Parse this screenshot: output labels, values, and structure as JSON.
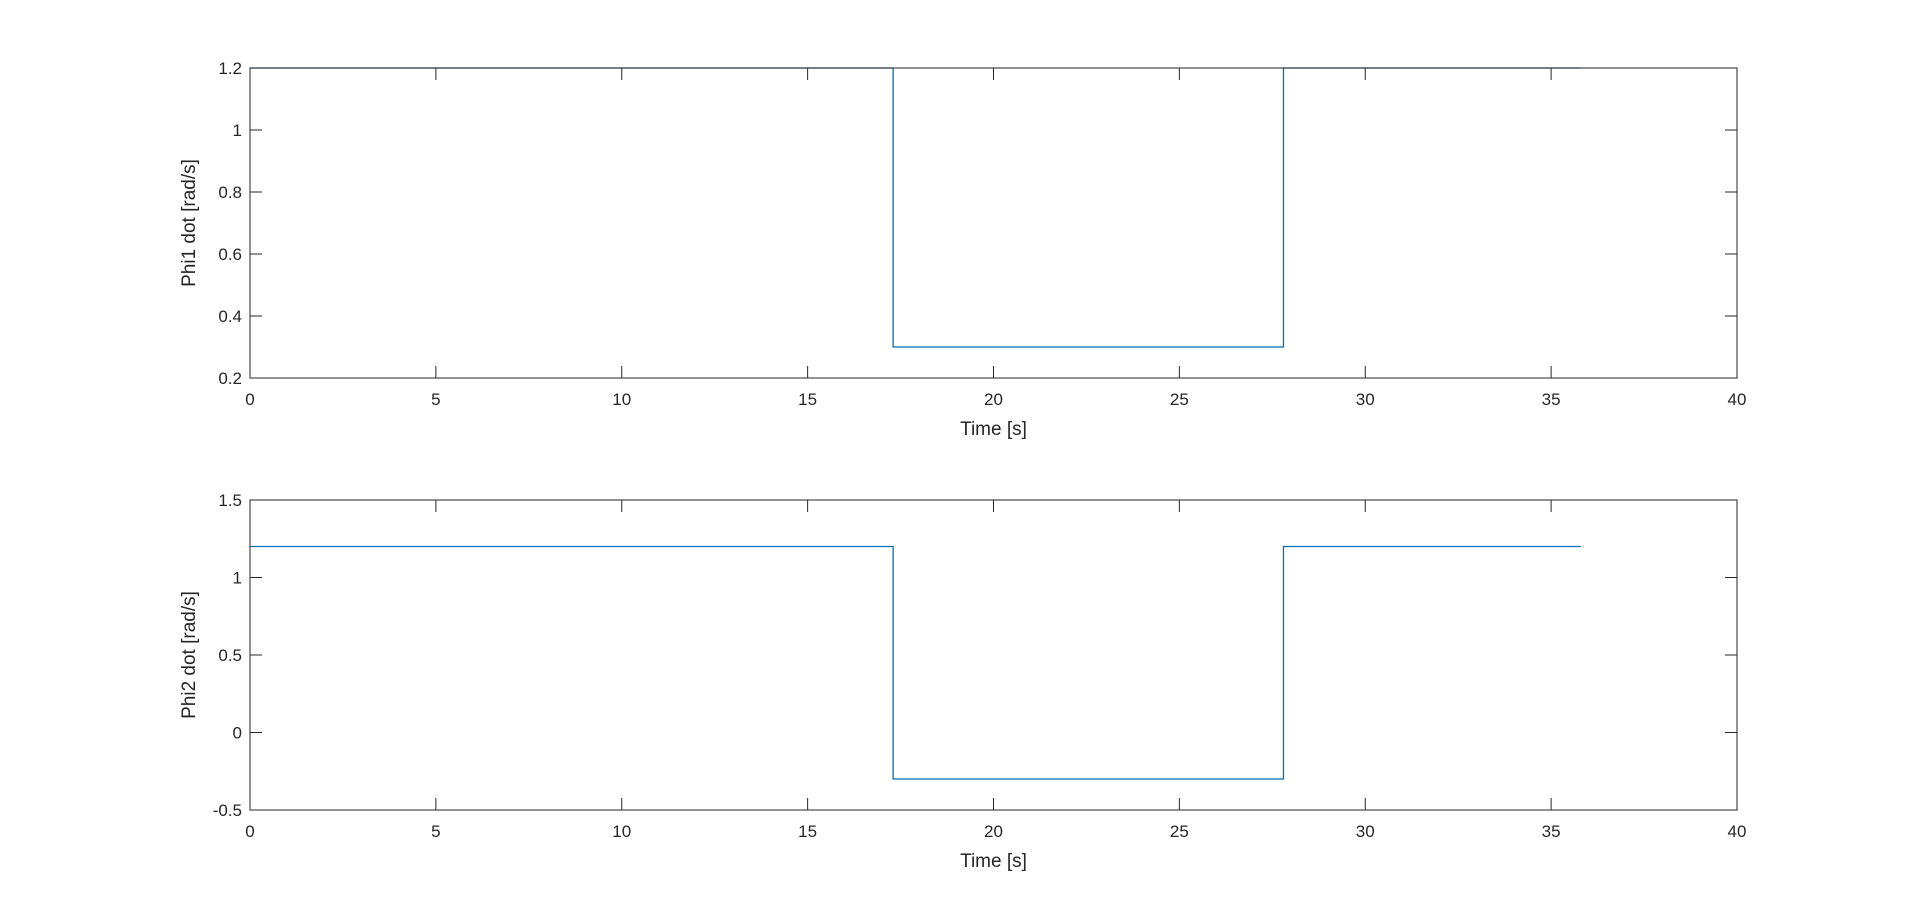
{
  "chart_data": [
    {
      "type": "line",
      "xlabel": "Time [s]",
      "ylabel": "Phi1 dot [rad/s]",
      "xlim": [
        0,
        40
      ],
      "ylim": [
        0.2,
        1.2
      ],
      "xticks": [
        0,
        5,
        10,
        15,
        20,
        25,
        30,
        35,
        40
      ],
      "yticks": [
        0.2,
        0.4,
        0.6,
        0.8,
        1.0,
        1.2
      ],
      "xtick_labels": [
        "0",
        "5",
        "10",
        "15",
        "20",
        "25",
        "30",
        "35",
        "40"
      ],
      "ytick_labels": [
        "0.2",
        "0.4",
        "0.6",
        "0.8",
        "1",
        "1.2"
      ],
      "grid": false,
      "line_color": "#0072BD",
      "series": [
        {
          "x": [
            0,
            17.3,
            17.3,
            27.8,
            27.8,
            35.8
          ],
          "y": [
            1.2,
            1.2,
            0.3,
            0.3,
            1.2,
            1.2
          ]
        }
      ]
    },
    {
      "type": "line",
      "xlabel": "Time [s]",
      "ylabel": "Phi2 dot [rad/s]",
      "xlim": [
        0,
        40
      ],
      "ylim": [
        -0.5,
        1.5
      ],
      "xticks": [
        0,
        5,
        10,
        15,
        20,
        25,
        30,
        35,
        40
      ],
      "yticks": [
        -0.5,
        0,
        0.5,
        1.0,
        1.5
      ],
      "xtick_labels": [
        "0",
        "5",
        "10",
        "15",
        "20",
        "25",
        "30",
        "35",
        "40"
      ],
      "ytick_labels": [
        "-0.5",
        "0",
        "0.5",
        "1",
        "1.5"
      ],
      "grid": false,
      "line_color": "#0072BD",
      "series": [
        {
          "x": [
            0,
            17.3,
            17.3,
            27.8,
            27.8,
            35.8
          ],
          "y": [
            1.2,
            1.2,
            -0.3,
            -0.3,
            1.2,
            1.2
          ]
        }
      ]
    }
  ]
}
